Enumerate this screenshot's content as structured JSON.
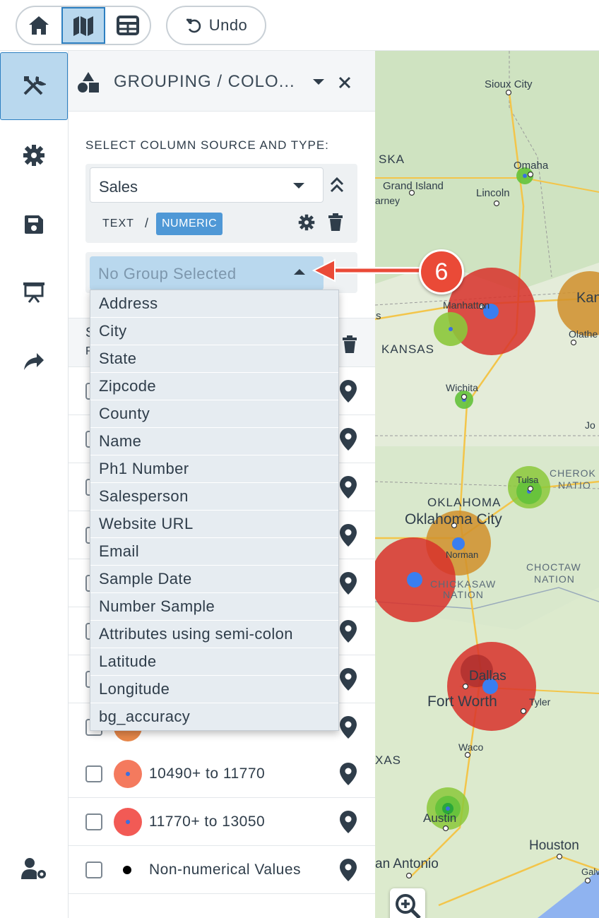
{
  "toolbar": {
    "undo_label": "Undo",
    "views": [
      {
        "icon": "home-icon"
      },
      {
        "icon": "map-icon",
        "active": true
      },
      {
        "icon": "table-icon"
      }
    ]
  },
  "rail": {
    "items": [
      {
        "icon": "tools-icon",
        "active": true
      },
      {
        "icon": "gear-icon"
      },
      {
        "icon": "save-icon"
      },
      {
        "icon": "presentation-icon"
      },
      {
        "icon": "share-icon"
      },
      {
        "icon": "user-settings-icon"
      }
    ]
  },
  "panel": {
    "title": "GROUPING / COLO...",
    "section_label": "SELECT COLUMN SOURCE AND TYPE:",
    "column_select_value": "Sales",
    "type_text": "TEXT",
    "type_separator": "/",
    "type_numeric": "NUMERIC",
    "group_select_placeholder": "No Group Selected",
    "legend_head_partial_1": "S",
    "legend_head_partial_2": "R"
  },
  "dropdown": {
    "options": [
      "Address",
      "City",
      "State",
      "Zipcode",
      "County",
      "Name",
      "Ph1 Number",
      "Salesperson",
      "Website URL",
      "Email",
      "Sample Date",
      "Number Sample",
      "Attributes using semi-colon",
      "Latitude",
      "Longitude",
      "bg_accuracy"
    ]
  },
  "legend": {
    "rows": [
      {
        "label": "10490+ to 11770",
        "color": "#f47a5e"
      },
      {
        "label": "11770+ to 13050",
        "color": "#f25a55"
      },
      {
        "label": "Non-numerical Values",
        "color": "#000000"
      }
    ]
  },
  "callout": {
    "number": "6"
  },
  "map": {
    "labels": {
      "sioux_city": "Sioux City",
      "ska": "SKA",
      "omaha": "Omaha",
      "grand_island": "Grand Island",
      "lincoln": "Lincoln",
      "arney": "arney",
      "manhattan": "Manhattan",
      "kansas_city": "Kansa",
      "olathe": "Olathe",
      "s": "s",
      "kansas": "KANSAS",
      "wichita": "Wichita",
      "jo": "Jo",
      "cherokee": "CHEROK",
      "natio": "NATIO",
      "tulsa": "Tulsa",
      "oklahoma": "OKLAHOMA",
      "oklahoma_city": "Oklahoma City",
      "norman": "Norman",
      "choctaw": "CHOCTAW",
      "nation": "NATION",
      "chickasaw": "CHICKASAW",
      "chick_nation": "NATION",
      "dallas": "Dallas",
      "fort_worth": "Fort Worth",
      "tyler": "Tyler",
      "waco": "Waco",
      "xas": "XAS",
      "austin": "Austin",
      "houston": "Houston",
      "san_antonio": "an Antonio",
      "galveston": "Galvest"
    }
  },
  "zoom": {
    "icon": "zoom-in-icon"
  }
}
